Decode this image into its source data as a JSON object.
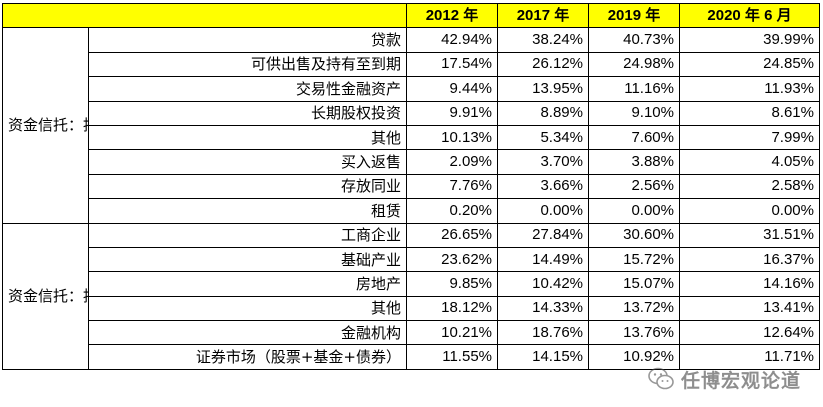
{
  "header": {
    "cols": [
      "2012 年",
      "2017 年",
      "2019 年",
      "2020 年 6 月"
    ]
  },
  "groups": [
    {
      "label": "资金信托：按运用方式",
      "rows": [
        {
          "label": "贷款",
          "values": [
            "42.94%",
            "38.24%",
            "40.73%",
            "39.99%"
          ]
        },
        {
          "label": "可供出售及持有至到期",
          "values": [
            "17.54%",
            "26.12%",
            "24.98%",
            "24.85%"
          ]
        },
        {
          "label": "交易性金融资产",
          "values": [
            "9.44%",
            "13.95%",
            "11.16%",
            "11.93%"
          ]
        },
        {
          "label": "长期股权投资",
          "values": [
            "9.91%",
            "8.89%",
            "9.10%",
            "8.61%"
          ]
        },
        {
          "label": "其他",
          "values": [
            "10.13%",
            "5.34%",
            "7.60%",
            "7.99%"
          ]
        },
        {
          "label": "买入返售",
          "values": [
            "2.09%",
            "3.70%",
            "3.88%",
            "4.05%"
          ]
        },
        {
          "label": "存放同业",
          "values": [
            "7.76%",
            "3.66%",
            "2.56%",
            "2.58%"
          ]
        },
        {
          "label": "租赁",
          "values": [
            "0.20%",
            "0.00%",
            "0.00%",
            "0.00%"
          ]
        }
      ]
    },
    {
      "label": "资金信托：按投向",
      "rows": [
        {
          "label": "工商企业",
          "values": [
            "26.65%",
            "27.84%",
            "30.60%",
            "31.51%"
          ]
        },
        {
          "label": "基础产业",
          "values": [
            "23.62%",
            "14.49%",
            "15.72%",
            "16.37%"
          ]
        },
        {
          "label": "房地产",
          "values": [
            "9.85%",
            "10.42%",
            "15.07%",
            "14.16%"
          ]
        },
        {
          "label": "其他",
          "values": [
            "18.12%",
            "14.33%",
            "13.72%",
            "13.41%"
          ]
        },
        {
          "label": "金融机构",
          "values": [
            "10.21%",
            "18.76%",
            "13.76%",
            "12.64%"
          ]
        },
        {
          "label": "证券市场（股票+基金+债券）",
          "values": [
            "11.55%",
            "14.15%",
            "10.92%",
            "11.71%"
          ]
        }
      ]
    }
  ],
  "watermark": {
    "text": "任博宏观论道",
    "icon": "wechat-icon"
  }
}
